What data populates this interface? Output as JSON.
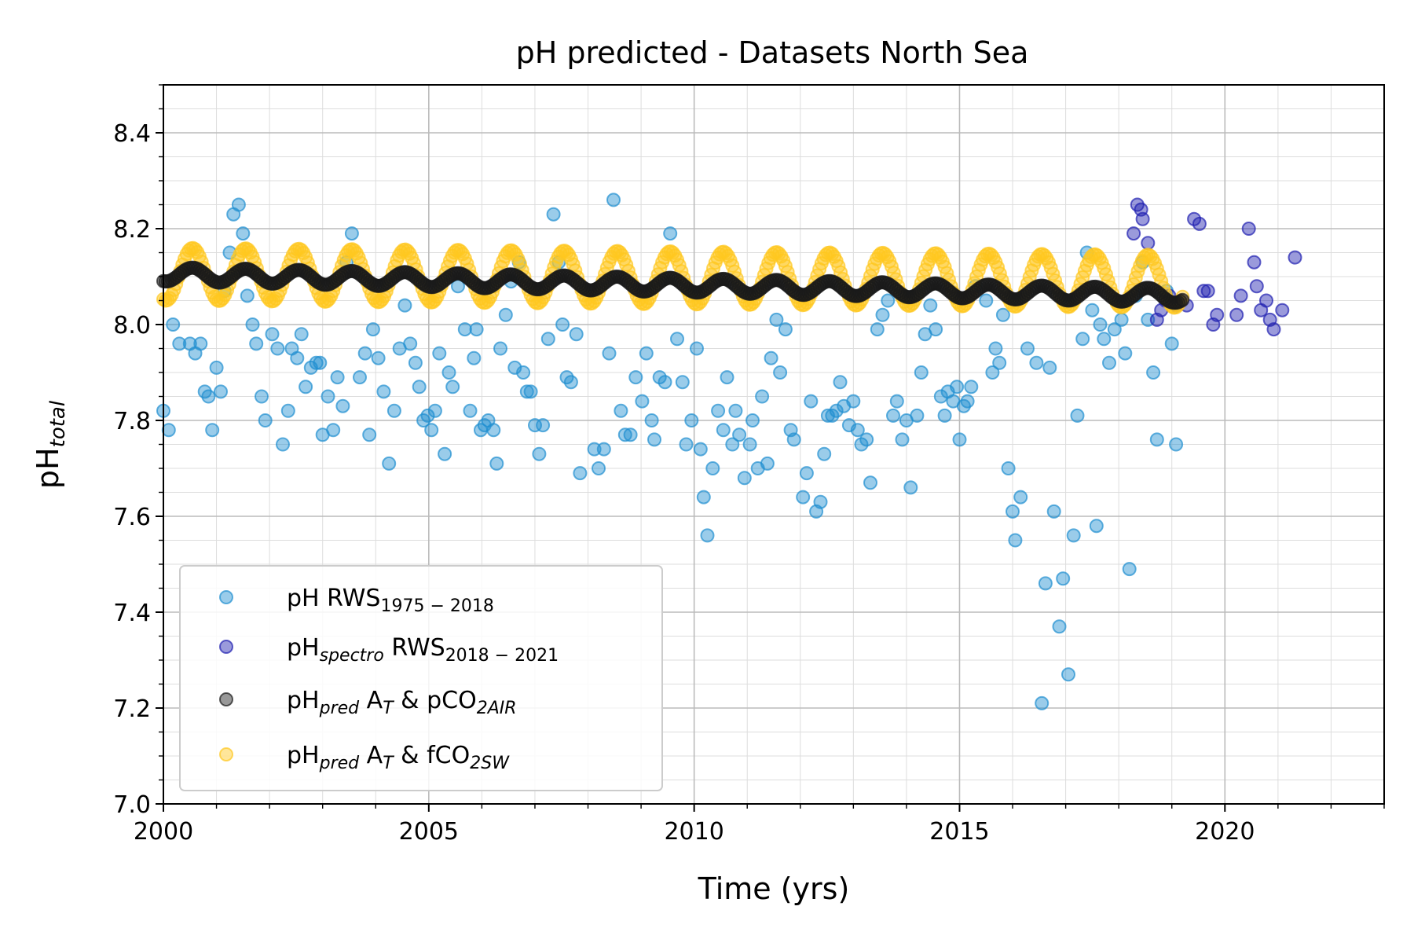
{
  "chart_data": {
    "type": "scatter",
    "title": "pH predicted - Datasets North Sea",
    "xlabel": "Time (yrs)",
    "ylabel": {
      "main": "pH",
      "sub": "total"
    },
    "xlim": [
      2000,
      2023
    ],
    "ylim": [
      7.0,
      8.5
    ],
    "x_major_ticks": [
      2000,
      2005,
      2010,
      2015,
      2020
    ],
    "x_tick_labels": [
      "2000",
      "2005",
      "2010",
      "2015",
      "2020"
    ],
    "y_major_ticks": [
      7.0,
      7.2,
      7.4,
      7.6,
      7.8,
      8.0,
      8.2,
      8.4
    ],
    "y_tick_labels": [
      "7.0",
      "7.2",
      "7.4",
      "7.6",
      "7.8",
      "8.0",
      "8.2",
      "8.4"
    ],
    "grid": "major and minor",
    "legend_position": "lower-left",
    "series": [
      {
        "name": "pH RWS1975 - 2018",
        "legend": {
          "main": "pH RWS",
          "sub": "1975 − 2018",
          "rest": ""
        },
        "color": "#1f8fd0",
        "points": [
          [
            2000.0,
            7.82
          ],
          [
            2000.1,
            7.78
          ],
          [
            2000.18,
            8.0
          ],
          [
            2000.3,
            7.96
          ],
          [
            2000.5,
            7.96
          ],
          [
            2000.6,
            7.94
          ],
          [
            2000.7,
            7.96
          ],
          [
            2000.78,
            7.86
          ],
          [
            2000.85,
            7.85
          ],
          [
            2000.92,
            7.78
          ],
          [
            2001.0,
            7.91
          ],
          [
            2001.08,
            7.86
          ],
          [
            2001.15,
            8.07
          ],
          [
            2001.25,
            8.15
          ],
          [
            2001.32,
            8.23
          ],
          [
            2001.42,
            8.25
          ],
          [
            2001.5,
            8.19
          ],
          [
            2001.58,
            8.06
          ],
          [
            2001.68,
            8.0
          ],
          [
            2001.75,
            7.96
          ],
          [
            2001.85,
            7.85
          ],
          [
            2001.92,
            7.8
          ],
          [
            2002.05,
            7.98
          ],
          [
            2002.15,
            7.95
          ],
          [
            2002.25,
            7.75
          ],
          [
            2002.35,
            7.82
          ],
          [
            2002.42,
            7.95
          ],
          [
            2002.52,
            7.93
          ],
          [
            2002.6,
            7.98
          ],
          [
            2002.68,
            7.87
          ],
          [
            2002.78,
            7.91
          ],
          [
            2002.88,
            7.92
          ],
          [
            2002.95,
            7.92
          ],
          [
            2003.0,
            7.77
          ],
          [
            2003.1,
            7.85
          ],
          [
            2003.2,
            7.78
          ],
          [
            2003.28,
            7.89
          ],
          [
            2003.38,
            7.83
          ],
          [
            2003.45,
            8.13
          ],
          [
            2003.55,
            8.19
          ],
          [
            2003.7,
            7.89
          ],
          [
            2003.8,
            7.94
          ],
          [
            2003.88,
            7.77
          ],
          [
            2003.95,
            7.99
          ],
          [
            2004.05,
            7.93
          ],
          [
            2004.15,
            7.86
          ],
          [
            2004.25,
            7.71
          ],
          [
            2004.35,
            7.82
          ],
          [
            2004.45,
            7.95
          ],
          [
            2004.55,
            8.04
          ],
          [
            2004.65,
            7.96
          ],
          [
            2004.75,
            7.92
          ],
          [
            2004.82,
            7.87
          ],
          [
            2004.9,
            7.8
          ],
          [
            2004.98,
            7.81
          ],
          [
            2005.05,
            7.78
          ],
          [
            2005.12,
            7.82
          ],
          [
            2005.2,
            7.94
          ],
          [
            2005.3,
            7.73
          ],
          [
            2005.38,
            7.9
          ],
          [
            2005.45,
            7.87
          ],
          [
            2005.55,
            8.08
          ],
          [
            2005.68,
            7.99
          ],
          [
            2005.78,
            7.82
          ],
          [
            2005.85,
            7.93
          ],
          [
            2005.9,
            7.99
          ],
          [
            2005.98,
            7.78
          ],
          [
            2006.05,
            7.79
          ],
          [
            2006.12,
            7.8
          ],
          [
            2006.22,
            7.78
          ],
          [
            2006.28,
            7.71
          ],
          [
            2006.35,
            7.95
          ],
          [
            2006.45,
            8.02
          ],
          [
            2006.55,
            8.09
          ],
          [
            2006.62,
            7.91
          ],
          [
            2006.7,
            8.13
          ],
          [
            2006.78,
            7.9
          ],
          [
            2006.85,
            7.86
          ],
          [
            2006.92,
            7.86
          ],
          [
            2007.0,
            7.79
          ],
          [
            2007.08,
            7.73
          ],
          [
            2007.15,
            7.79
          ],
          [
            2007.25,
            7.97
          ],
          [
            2007.35,
            8.23
          ],
          [
            2007.45,
            8.13
          ],
          [
            2007.52,
            8.0
          ],
          [
            2007.6,
            7.89
          ],
          [
            2007.68,
            7.88
          ],
          [
            2007.78,
            7.98
          ],
          [
            2007.85,
            7.69
          ],
          [
            2008.12,
            7.74
          ],
          [
            2008.2,
            7.7
          ],
          [
            2008.3,
            7.74
          ],
          [
            2008.4,
            7.94
          ],
          [
            2008.48,
            8.26
          ],
          [
            2008.62,
            7.82
          ],
          [
            2008.7,
            7.77
          ],
          [
            2008.8,
            7.77
          ],
          [
            2008.9,
            7.89
          ],
          [
            2009.02,
            7.84
          ],
          [
            2009.1,
            7.94
          ],
          [
            2009.2,
            7.8
          ],
          [
            2009.25,
            7.76
          ],
          [
            2009.35,
            7.89
          ],
          [
            2009.45,
            7.88
          ],
          [
            2009.55,
            8.19
          ],
          [
            2009.68,
            7.97
          ],
          [
            2009.78,
            7.88
          ],
          [
            2009.85,
            7.75
          ],
          [
            2009.95,
            7.8
          ],
          [
            2010.05,
            7.95
          ],
          [
            2010.12,
            7.74
          ],
          [
            2010.18,
            7.64
          ],
          [
            2010.25,
            7.56
          ],
          [
            2010.35,
            7.7
          ],
          [
            2010.45,
            7.82
          ],
          [
            2010.55,
            7.78
          ],
          [
            2010.62,
            7.89
          ],
          [
            2010.72,
            7.75
          ],
          [
            2010.78,
            7.82
          ],
          [
            2010.85,
            7.77
          ],
          [
            2010.95,
            7.68
          ],
          [
            2011.05,
            7.75
          ],
          [
            2011.1,
            7.8
          ],
          [
            2011.2,
            7.7
          ],
          [
            2011.28,
            7.85
          ],
          [
            2011.38,
            7.71
          ],
          [
            2011.45,
            7.93
          ],
          [
            2011.55,
            8.01
          ],
          [
            2011.62,
            7.9
          ],
          [
            2011.72,
            7.99
          ],
          [
            2011.82,
            7.78
          ],
          [
            2011.88,
            7.76
          ],
          [
            2012.05,
            7.64
          ],
          [
            2012.12,
            7.69
          ],
          [
            2012.2,
            7.84
          ],
          [
            2012.3,
            7.61
          ],
          [
            2012.38,
            7.63
          ],
          [
            2012.45,
            7.73
          ],
          [
            2012.52,
            7.81
          ],
          [
            2012.6,
            7.81
          ],
          [
            2012.68,
            7.82
          ],
          [
            2012.75,
            7.88
          ],
          [
            2012.82,
            7.83
          ],
          [
            2012.92,
            7.79
          ],
          [
            2013.0,
            7.84
          ],
          [
            2013.08,
            7.78
          ],
          [
            2013.15,
            7.75
          ],
          [
            2013.25,
            7.76
          ],
          [
            2013.32,
            7.67
          ],
          [
            2013.45,
            7.99
          ],
          [
            2013.55,
            8.02
          ],
          [
            2013.65,
            8.05
          ],
          [
            2013.75,
            7.81
          ],
          [
            2013.82,
            7.84
          ],
          [
            2013.92,
            7.76
          ],
          [
            2014.0,
            7.8
          ],
          [
            2014.08,
            7.66
          ],
          [
            2014.2,
            7.81
          ],
          [
            2014.28,
            7.9
          ],
          [
            2014.35,
            7.98
          ],
          [
            2014.45,
            8.04
          ],
          [
            2014.55,
            7.99
          ],
          [
            2014.65,
            7.85
          ],
          [
            2014.72,
            7.81
          ],
          [
            2014.78,
            7.86
          ],
          [
            2014.88,
            7.84
          ],
          [
            2014.95,
            7.87
          ],
          [
            2015.0,
            7.76
          ],
          [
            2015.08,
            7.83
          ],
          [
            2015.15,
            7.84
          ],
          [
            2015.22,
            7.87
          ],
          [
            2015.3,
            8.08
          ],
          [
            2015.5,
            8.05
          ],
          [
            2015.62,
            7.9
          ],
          [
            2015.68,
            7.95
          ],
          [
            2015.75,
            7.92
          ],
          [
            2015.82,
            8.02
          ],
          [
            2015.92,
            7.7
          ],
          [
            2016.0,
            7.61
          ],
          [
            2016.05,
            7.55
          ],
          [
            2016.15,
            7.64
          ],
          [
            2016.28,
            7.95
          ],
          [
            2016.45,
            7.92
          ],
          [
            2016.55,
            7.21
          ],
          [
            2016.62,
            7.46
          ],
          [
            2016.7,
            7.91
          ],
          [
            2016.78,
            7.61
          ],
          [
            2016.88,
            7.37
          ],
          [
            2016.95,
            7.47
          ],
          [
            2017.05,
            7.27
          ],
          [
            2017.15,
            7.56
          ],
          [
            2017.22,
            7.81
          ],
          [
            2017.32,
            7.97
          ],
          [
            2017.4,
            8.15
          ],
          [
            2017.5,
            8.03
          ],
          [
            2017.58,
            7.58
          ],
          [
            2017.65,
            8.0
          ],
          [
            2017.72,
            7.97
          ],
          [
            2017.82,
            7.92
          ],
          [
            2017.92,
            7.99
          ],
          [
            2018.05,
            8.01
          ],
          [
            2018.12,
            7.94
          ],
          [
            2018.2,
            7.49
          ],
          [
            2018.32,
            8.06
          ],
          [
            2018.45,
            8.13
          ],
          [
            2018.55,
            8.01
          ],
          [
            2018.65,
            7.9
          ],
          [
            2018.72,
            7.76
          ],
          [
            2018.9,
            8.07
          ],
          [
            2019.0,
            7.96
          ],
          [
            2019.08,
            7.75
          ]
        ]
      },
      {
        "name": "pHspectro RWS2018 - 2021",
        "legend": {
          "main": "pH",
          "italic_sub": "spectro",
          "rest": " RWS",
          "sub": "2018 − 2021"
        },
        "color": "#2020b0",
        "points": [
          [
            2018.28,
            8.19
          ],
          [
            2018.35,
            8.25
          ],
          [
            2018.42,
            8.24
          ],
          [
            2018.45,
            8.22
          ],
          [
            2018.55,
            8.17
          ],
          [
            2018.72,
            8.01
          ],
          [
            2018.8,
            8.03
          ],
          [
            2018.88,
            8.05
          ],
          [
            2018.95,
            8.06
          ],
          [
            2019.08,
            8.04
          ],
          [
            2019.18,
            8.05
          ],
          [
            2019.28,
            8.04
          ],
          [
            2019.42,
            8.22
          ],
          [
            2019.52,
            8.21
          ],
          [
            2019.6,
            8.07
          ],
          [
            2019.68,
            8.07
          ],
          [
            2019.78,
            8.0
          ],
          [
            2019.85,
            8.02
          ],
          [
            2020.22,
            8.02
          ],
          [
            2020.3,
            8.06
          ],
          [
            2020.45,
            8.2
          ],
          [
            2020.55,
            8.13
          ],
          [
            2020.6,
            8.08
          ],
          [
            2020.68,
            8.03
          ],
          [
            2020.78,
            8.05
          ],
          [
            2020.85,
            8.01
          ],
          [
            2020.92,
            7.99
          ],
          [
            2021.08,
            8.03
          ],
          [
            2021.32,
            8.14
          ]
        ]
      },
      {
        "name": "pHpred AT & pCO2AIR",
        "legend": {
          "main": "pH",
          "italic_sub": "pred",
          "rest": " A",
          "sub2": "T",
          "rest2": " & pCO",
          "sub3": "2AIR"
        },
        "color": "#1a1a1a",
        "model": {
          "kind": "sinusoid",
          "x_start": 2000.0,
          "x_end": 2019.2,
          "step": 0.04,
          "base_start": 8.105,
          "base_end": 8.06,
          "amplitude": 0.015,
          "period": 1.0,
          "phase": 0.55
        }
      },
      {
        "name": "pHpred AT & fCO2SW",
        "legend": {
          "main": "pH",
          "italic_sub": "pred",
          "rest": " A",
          "sub2": "T",
          "rest2": " & fCO",
          "sub3": "2SW"
        },
        "color": "#ffc820",
        "model": {
          "kind": "sinusoid",
          "x_start": 2000.0,
          "x_end": 2019.2,
          "step": 0.04,
          "base_start": 8.105,
          "base_end": 8.09,
          "amplitude": 0.055,
          "period": 1.0,
          "phase": 0.55
        }
      }
    ]
  }
}
